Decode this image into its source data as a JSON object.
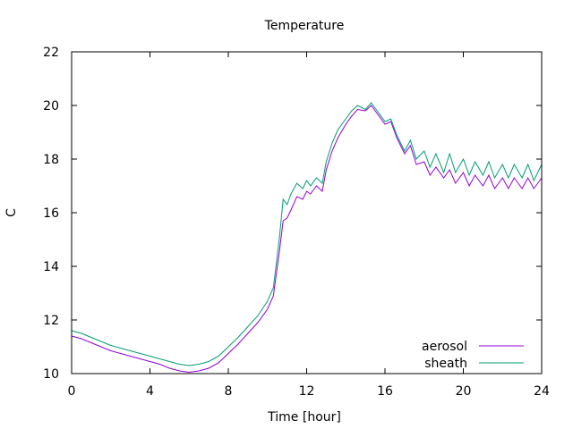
{
  "chart_data": {
    "type": "line",
    "title": "Temperature",
    "xlabel": "Time [hour]",
    "ylabel": "C",
    "xlim": [
      0,
      24
    ],
    "ylim": [
      10,
      22
    ],
    "xticks": [
      0,
      4,
      8,
      12,
      16,
      20,
      24
    ],
    "yticks": [
      10,
      12,
      14,
      16,
      18,
      20,
      22
    ],
    "grid": false,
    "legend_position": "bottom-right",
    "series": [
      {
        "name": "aerosol",
        "color": "#9400d3",
        "x": [
          0,
          0.5,
          1,
          1.5,
          2,
          2.5,
          3,
          3.5,
          4,
          4.5,
          5,
          5.5,
          6,
          6.5,
          7,
          7.5,
          8,
          8.5,
          9,
          9.5,
          10,
          10.3,
          10.6,
          10.8,
          11,
          11.2,
          11.5,
          11.8,
          12,
          12.2,
          12.5,
          12.8,
          13,
          13.3,
          13.6,
          14,
          14.3,
          14.6,
          15,
          15.3,
          15.6,
          16,
          16.3,
          16.6,
          17,
          17.3,
          17.6,
          18,
          18.3,
          18.6,
          19,
          19.3,
          19.6,
          20,
          20.3,
          20.6,
          21,
          21.3,
          21.6,
          22,
          22.3,
          22.6,
          23,
          23.3,
          23.6,
          24
        ],
        "y": [
          11.4,
          11.3,
          11.15,
          11.0,
          10.85,
          10.75,
          10.65,
          10.55,
          10.45,
          10.35,
          10.2,
          10.1,
          10.05,
          10.1,
          10.2,
          10.4,
          10.75,
          11.1,
          11.5,
          11.9,
          12.4,
          12.9,
          14.5,
          15.7,
          15.8,
          16.1,
          16.6,
          16.5,
          16.8,
          16.7,
          17.0,
          16.8,
          17.6,
          18.3,
          18.8,
          19.3,
          19.6,
          19.85,
          19.8,
          20.0,
          19.7,
          19.3,
          19.4,
          18.8,
          18.2,
          18.5,
          17.8,
          17.9,
          17.4,
          17.7,
          17.3,
          17.6,
          17.1,
          17.5,
          17.0,
          17.4,
          17.0,
          17.4,
          16.9,
          17.3,
          16.9,
          17.3,
          16.9,
          17.3,
          16.9,
          17.3
        ]
      },
      {
        "name": "sheath",
        "color": "#009e73",
        "x": [
          0,
          0.5,
          1,
          1.5,
          2,
          2.5,
          3,
          3.5,
          4,
          4.5,
          5,
          5.5,
          6,
          6.5,
          7,
          7.5,
          8,
          8.5,
          9,
          9.5,
          10,
          10.3,
          10.6,
          10.8,
          11,
          11.2,
          11.5,
          11.8,
          12,
          12.2,
          12.5,
          12.8,
          13,
          13.3,
          13.6,
          14,
          14.3,
          14.6,
          15,
          15.3,
          15.6,
          16,
          16.3,
          16.6,
          17,
          17.3,
          17.6,
          18,
          18.3,
          18.6,
          19,
          19.3,
          19.6,
          20,
          20.3,
          20.6,
          21,
          21.3,
          21.6,
          22,
          22.3,
          22.6,
          23,
          23.3,
          23.6,
          24
        ],
        "y": [
          11.6,
          11.5,
          11.35,
          11.2,
          11.05,
          10.95,
          10.85,
          10.75,
          10.65,
          10.55,
          10.45,
          10.35,
          10.3,
          10.35,
          10.45,
          10.65,
          11.0,
          11.35,
          11.75,
          12.15,
          12.7,
          13.2,
          15.0,
          16.5,
          16.3,
          16.7,
          17.1,
          16.9,
          17.2,
          17.0,
          17.3,
          17.1,
          17.9,
          18.6,
          19.1,
          19.5,
          19.8,
          20.0,
          19.85,
          20.1,
          19.8,
          19.4,
          19.5,
          18.9,
          18.3,
          18.7,
          18.0,
          18.3,
          17.7,
          18.2,
          17.5,
          18.2,
          17.5,
          18.0,
          17.4,
          17.9,
          17.4,
          17.9,
          17.3,
          17.8,
          17.3,
          17.8,
          17.3,
          17.8,
          17.2,
          17.8
        ]
      }
    ]
  }
}
